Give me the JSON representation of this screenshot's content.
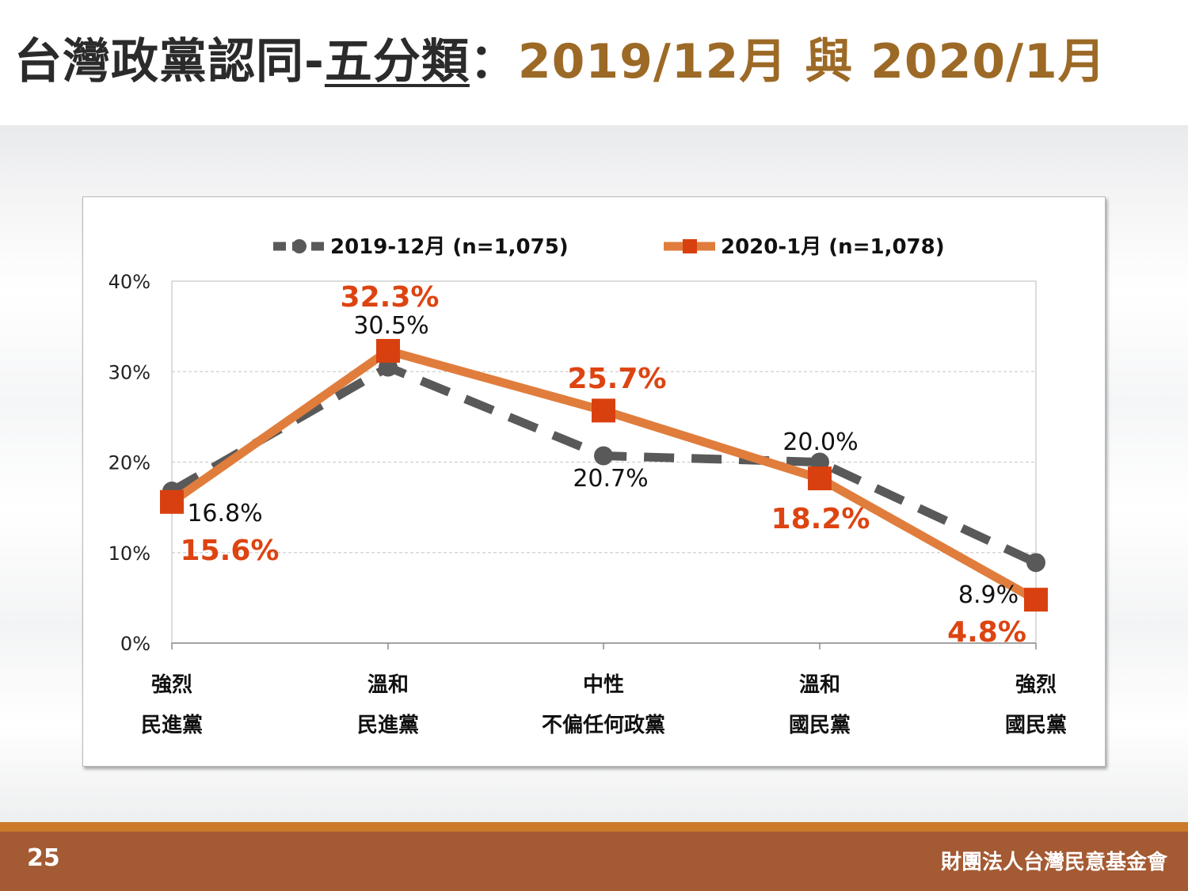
{
  "header": {
    "title_main": "台灣政黨認同-",
    "title_underlined": "五分類",
    "title_sep": "：",
    "title_period": "2019/12月 與 2020/1月"
  },
  "footer": {
    "page_number": "25",
    "organization": "財團法人台灣民意基金會"
  },
  "colors": {
    "series_2019": "#595959",
    "series_2020_line": "#e07d3c",
    "series_2020_marker": "#d9400f",
    "label_2020": "#dd4411",
    "footer_bg": "#a45a33",
    "footer_line": "#cc7a2a",
    "title_accent": "#9c6a26"
  },
  "chart_data": {
    "type": "line",
    "categories": [
      [
        "強烈",
        "民進黨"
      ],
      [
        "溫和",
        "民進黨"
      ],
      [
        "中性",
        "不偏任何政黨"
      ],
      [
        "溫和",
        "國民黨"
      ],
      [
        "強烈",
        "國民黨"
      ]
    ],
    "ylim": [
      0,
      40
    ],
    "yticks": [
      "0%",
      "10%",
      "20%",
      "30%",
      "40%"
    ],
    "grid": true,
    "legend_position": "top",
    "series": [
      {
        "name": "2019-12月 (n=1,075)",
        "style": "dashed",
        "marker": "circle",
        "values": [
          16.8,
          30.5,
          20.7,
          20.0,
          8.9
        ],
        "labels": [
          "16.8%",
          "30.5%",
          "20.7%",
          "20.0%",
          "8.9%"
        ]
      },
      {
        "name": "2020-1月 (n=1,078)",
        "style": "solid",
        "marker": "square",
        "values": [
          15.6,
          32.3,
          25.7,
          18.2,
          4.8
        ],
        "labels": [
          "15.6%",
          "32.3%",
          "25.7%",
          "18.2%",
          "4.8%"
        ]
      }
    ]
  }
}
